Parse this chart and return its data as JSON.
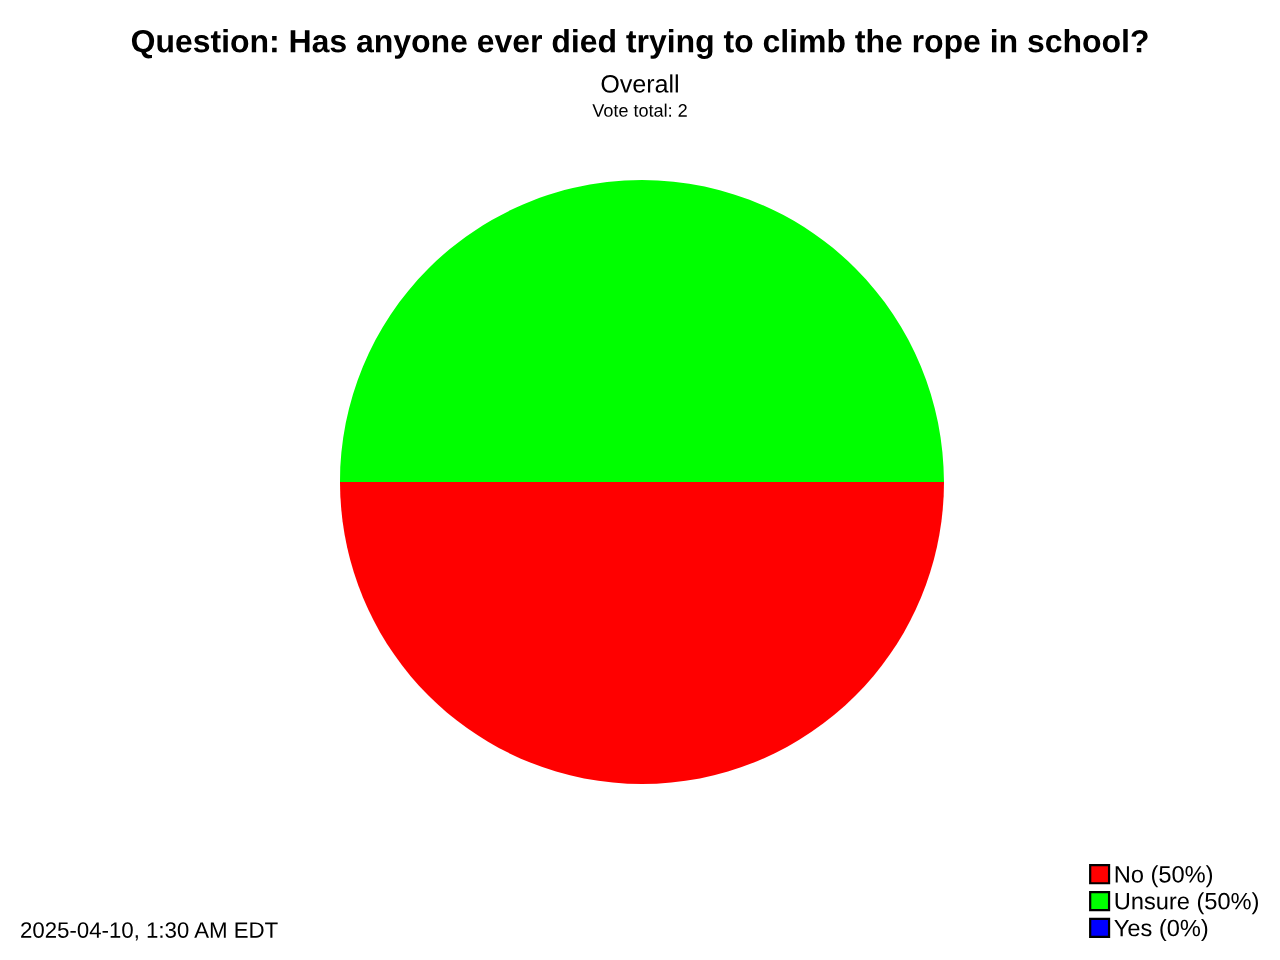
{
  "chart_data": {
    "type": "pie",
    "title": "Question: Has anyone ever died trying to climb the rope in school?",
    "subtitle": "Overall",
    "categories": [
      "No (50%)",
      "Unsure (50%)",
      "Yes (0%)"
    ],
    "values": [
      50,
      50,
      0
    ],
    "colors": [
      "#ff0000",
      "#00ff00",
      "#0000ff"
    ],
    "annotations": [
      "Vote total: 2",
      "2025-04-10, 1:30 AM EDT"
    ],
    "legend": "bottom right"
  }
}
